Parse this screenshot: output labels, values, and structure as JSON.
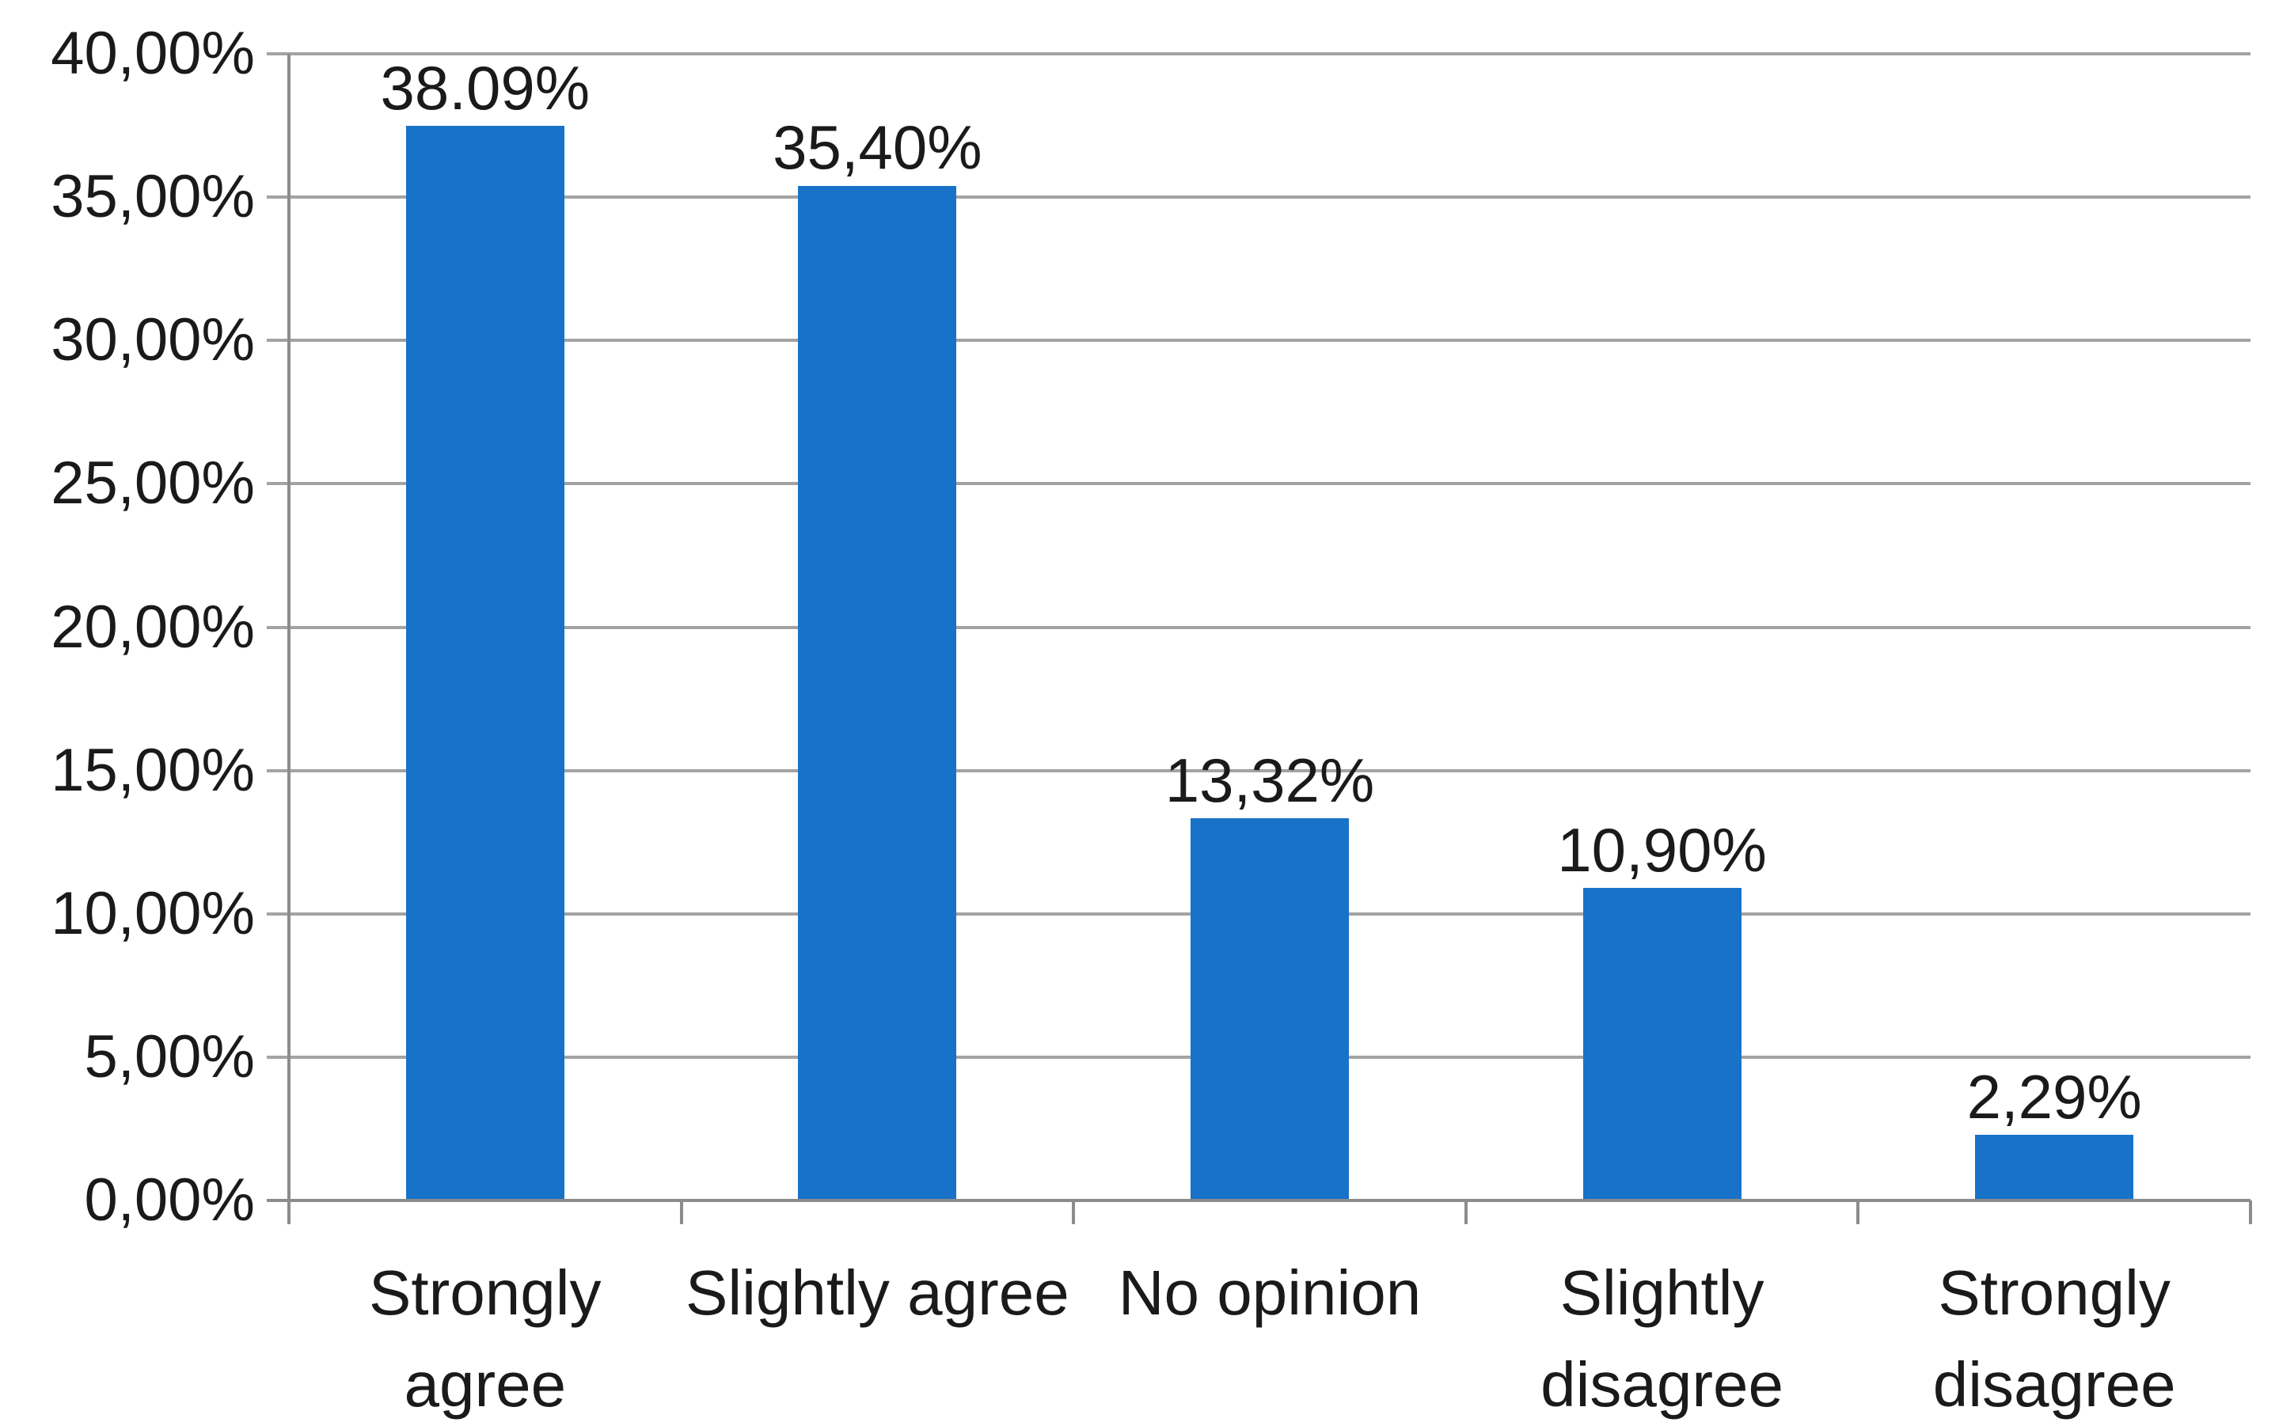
{
  "chart_data": {
    "type": "bar",
    "title": "",
    "xlabel": "",
    "ylabel": "",
    "categories": [
      "Strongly agree",
      "Slightly agree",
      "No opinion",
      "Slightly disagree",
      "Strongly disagree"
    ],
    "category_label_lines": [
      [
        "Strongly",
        "agree"
      ],
      [
        "Slightly agree"
      ],
      [
        "No opinion"
      ],
      [
        "Slightly",
        "disagree"
      ],
      [
        "Strongly",
        "disagree"
      ]
    ],
    "values": [
      38.09,
      35.4,
      13.32,
      10.9,
      2.29
    ],
    "data_labels": [
      "38.09%",
      "35,40%",
      "13,32%",
      "10,90%",
      "2,29%"
    ],
    "y_axis": {
      "min": 0,
      "max": 40,
      "step": 5,
      "tick_labels": [
        "40,00%",
        "35,00%",
        "30,00%",
        "25,00%",
        "20,00%",
        "15,00%",
        "10,00%",
        "5,00%",
        "0,00%"
      ]
    },
    "ylim": [
      0,
      40
    ],
    "grid": true,
    "legend": false,
    "colors": {
      "bar": "#1872C8",
      "gridline": "#A3A3A3",
      "axis": "#8C8C8C",
      "text": "#1A1A1A",
      "background": "#FFFFFF"
    }
  }
}
